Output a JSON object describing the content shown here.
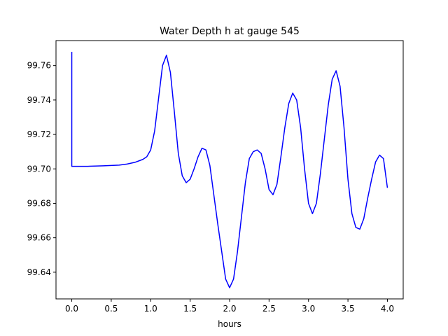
{
  "chart_data": {
    "type": "line",
    "title": "Water Depth h at gauge 545",
    "xlabel": "hours",
    "ylabel": "",
    "xlim": [
      -0.2,
      4.2
    ],
    "ylim": [
      99.6245,
      99.7745
    ],
    "xticks": [
      0.0,
      0.5,
      1.0,
      1.5,
      2.0,
      2.5,
      3.0,
      3.5,
      4.0
    ],
    "xtick_labels": [
      "0.0",
      "0.5",
      "1.0",
      "1.5",
      "2.0",
      "2.5",
      "3.0",
      "3.5",
      "4.0"
    ],
    "yticks": [
      99.64,
      99.66,
      99.68,
      99.7,
      99.72,
      99.74,
      99.76
    ],
    "ytick_labels": [
      "99.64",
      "99.66",
      "99.68",
      "99.70",
      "99.72",
      "99.74",
      "99.76"
    ],
    "grid": false,
    "series": [
      {
        "name": "",
        "color": "#0000ff",
        "x": [
          0.0,
          0.0,
          0.05,
          0.2,
          0.4,
          0.6,
          0.7,
          0.8,
          0.9,
          0.95,
          1.0,
          1.05,
          1.1,
          1.15,
          1.2,
          1.25,
          1.3,
          1.35,
          1.4,
          1.45,
          1.5,
          1.55,
          1.6,
          1.65,
          1.7,
          1.75,
          1.8,
          1.85,
          1.9,
          1.95,
          2.0,
          2.05,
          2.1,
          2.15,
          2.2,
          2.25,
          2.3,
          2.35,
          2.4,
          2.45,
          2.5,
          2.55,
          2.6,
          2.65,
          2.7,
          2.75,
          2.8,
          2.85,
          2.9,
          2.95,
          3.0,
          3.05,
          3.1,
          3.15,
          3.2,
          3.25,
          3.3,
          3.35,
          3.4,
          3.45,
          3.5,
          3.55,
          3.6,
          3.65,
          3.7,
          3.75,
          3.8,
          3.85,
          3.9,
          3.95,
          4.0
        ],
        "y": [
          99.768,
          99.7015,
          99.7015,
          99.7015,
          99.7018,
          99.7022,
          99.7028,
          99.7038,
          99.7055,
          99.707,
          99.711,
          99.722,
          99.741,
          99.76,
          99.766,
          99.756,
          99.733,
          99.709,
          99.696,
          99.692,
          99.694,
          99.7,
          99.707,
          99.712,
          99.711,
          99.702,
          99.685,
          99.668,
          99.652,
          99.636,
          99.631,
          99.636,
          99.652,
          99.672,
          99.692,
          99.706,
          99.71,
          99.711,
          99.709,
          99.7,
          99.688,
          99.685,
          99.691,
          99.707,
          99.724,
          99.738,
          99.744,
          99.74,
          99.724,
          99.7,
          99.68,
          99.674,
          99.68,
          99.697,
          99.717,
          99.737,
          99.752,
          99.757,
          99.748,
          99.724,
          99.694,
          99.674,
          99.666,
          99.665,
          99.671,
          99.683,
          99.694,
          99.704,
          99.708,
          99.706,
          99.689
        ]
      }
    ]
  }
}
